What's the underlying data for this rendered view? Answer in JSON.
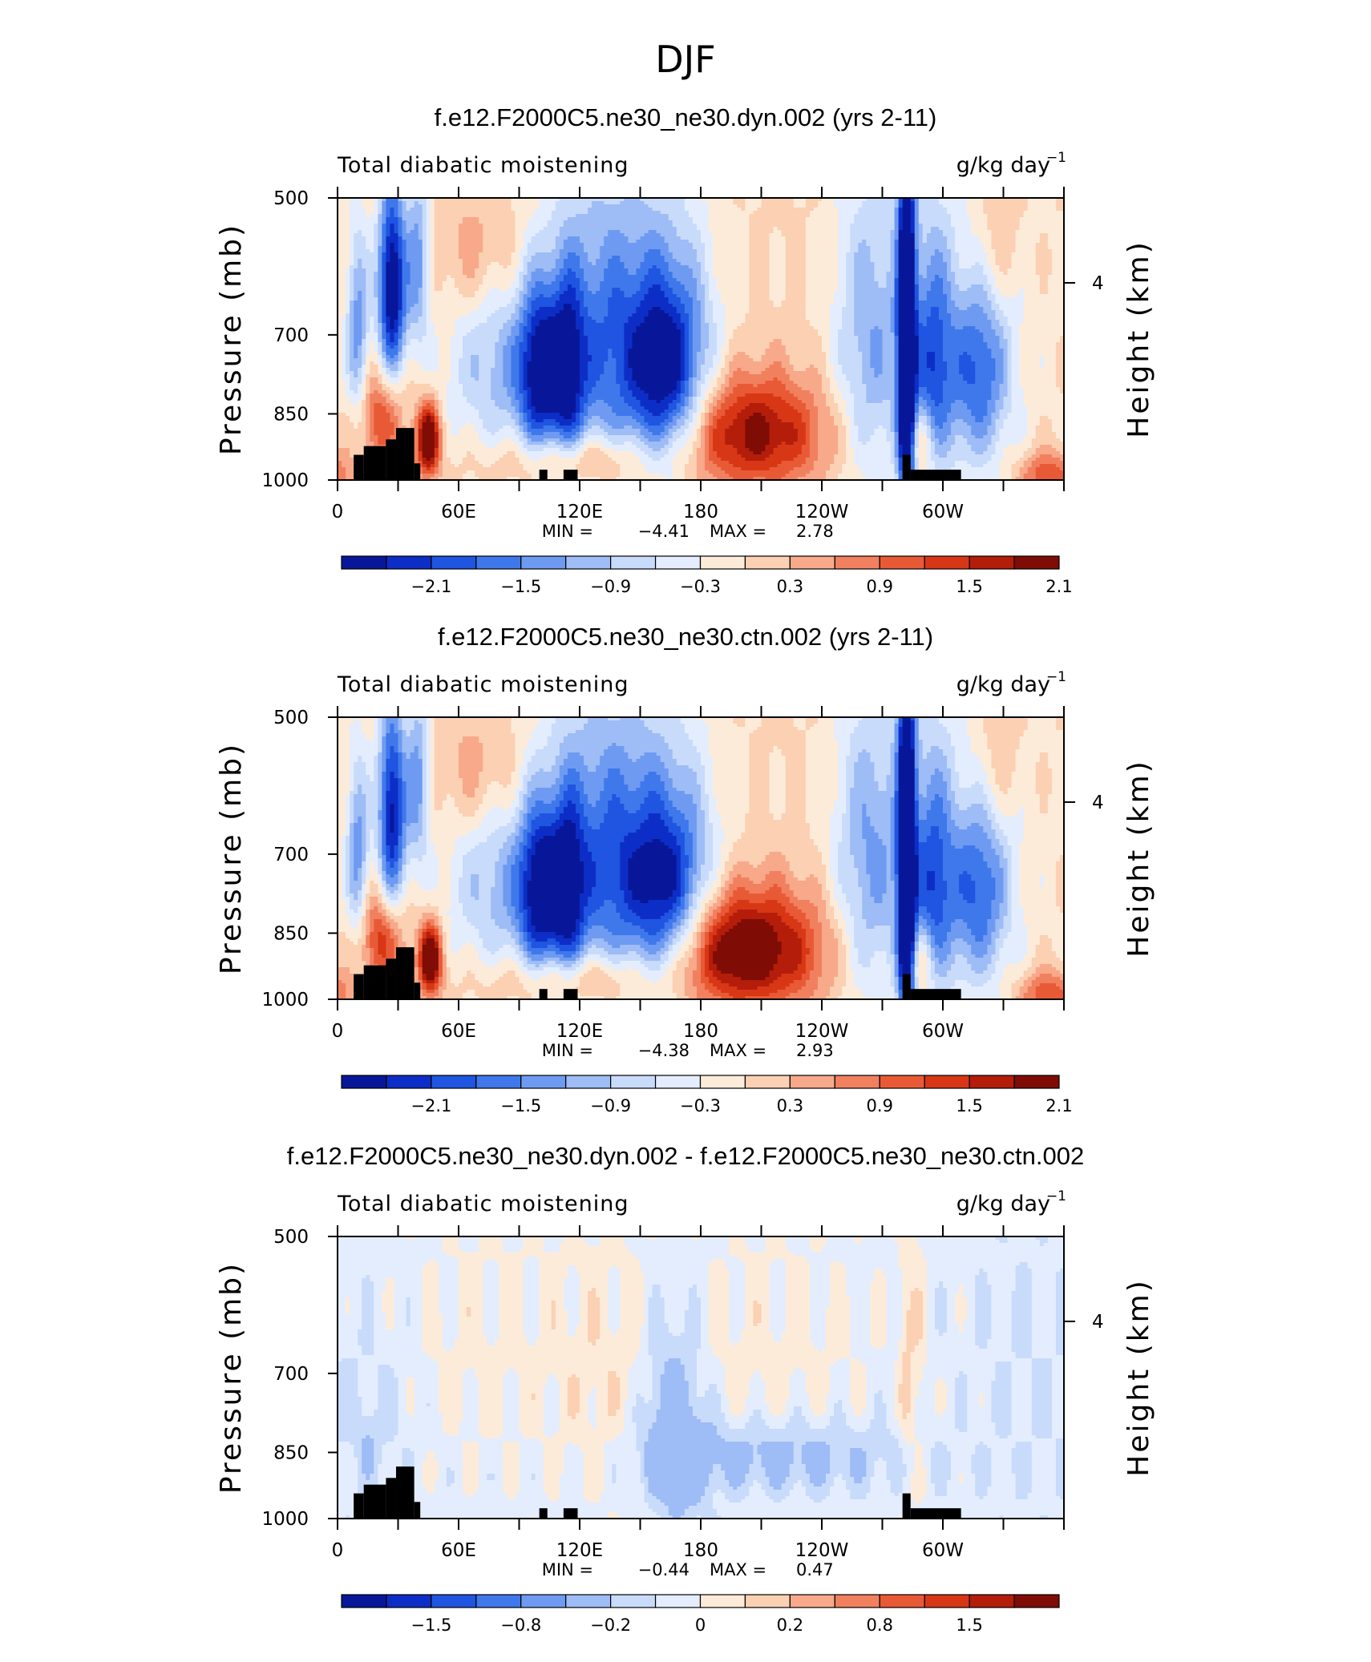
{
  "figure": {
    "title": "DJF",
    "colors": {
      "scale": [
        "#08179a",
        "#0d2ec6",
        "#1f55e0",
        "#3f78eb",
        "#6e9bf1",
        "#9ebcf5",
        "#c9dbfb",
        "#e3edfd",
        "#fdebd9",
        "#fbd0b3",
        "#f7a98a",
        "#f1805f",
        "#e85a35",
        "#d83716",
        "#b41d0a",
        "#7f0c05"
      ],
      "land": "#000000"
    }
  },
  "chart_data": [
    {
      "type": "heatmap",
      "title": "f.e12.F2000C5.ne30_ne30.dyn.002 (yrs 2-11)",
      "left_label": "Total diabatic moistening",
      "units": "g/kg day",
      "units_exp": "−1",
      "xlabel": "",
      "ylabel": "Pressure (mb)",
      "y2label": "Height (km)",
      "xticks": [
        "0",
        "60E",
        "120E",
        "180",
        "120W",
        "60W"
      ],
      "xtick_lon": [
        0,
        60,
        120,
        180,
        240,
        300
      ],
      "xlim": [
        0,
        360
      ],
      "ylim": [
        1000,
        500
      ],
      "yticks": [
        "500",
        "700",
        "850",
        "1000"
      ],
      "ytick_values": [
        500,
        700,
        850,
        1000
      ],
      "y2ticks": [
        "4"
      ],
      "y2tick_pressure": [
        616
      ],
      "stats": {
        "min_label": "MIN =",
        "min": "−4.41",
        "max_label": "MAX =",
        "max": "2.78"
      },
      "colorbar": {
        "levels": [
          -2.4,
          -2.1,
          -1.8,
          -1.5,
          -1.2,
          -0.9,
          -0.6,
          -0.3,
          0,
          0.3,
          0.6,
          0.9,
          1.2,
          1.5,
          1.8,
          2.1
        ],
        "labels": [
          "−2.1",
          "−1.5",
          "−0.9",
          "−0.3",
          "0.3",
          "0.9",
          "1.5",
          "2.1"
        ]
      },
      "features": [
        {
          "lon": 27,
          "p": 620,
          "amp": -3.0,
          "wlon": 5,
          "wp": 110
        },
        {
          "lon": 10,
          "p": 690,
          "amp": -1.4,
          "wlon": 4,
          "wp": 120
        },
        {
          "lon": 45,
          "p": 905,
          "amp": 2.6,
          "wlon": 4,
          "wp": 55
        },
        {
          "lon": 22,
          "p": 855,
          "amp": 1.2,
          "wlon": 8,
          "wp": 70
        },
        {
          "lon": 40,
          "p": 580,
          "amp": -1.4,
          "wlon": 4,
          "wp": 90
        },
        {
          "lon": 85,
          "p": 760,
          "amp": -1.2,
          "wlon": 24,
          "wp": 120
        },
        {
          "lon": 100,
          "p": 770,
          "amp": -1.8,
          "wlon": 7,
          "wp": 120
        },
        {
          "lon": 114,
          "p": 770,
          "amp": -1.6,
          "wlon": 6,
          "wp": 130
        },
        {
          "lon": 130,
          "p": 720,
          "amp": -1.0,
          "wlon": 16,
          "wp": 180
        },
        {
          "lon": 163,
          "p": 770,
          "amp": -2.4,
          "wlon": 14,
          "wp": 130
        },
        {
          "lon": 150,
          "p": 660,
          "amp": -0.8,
          "wlon": 28,
          "wp": 200
        },
        {
          "lon": 205,
          "p": 890,
          "amp": 1.9,
          "wlon": 26,
          "wp": 85
        },
        {
          "lon": 120,
          "p": 950,
          "amp": 0.9,
          "wlon": 25,
          "wp": 40
        },
        {
          "lon": 282,
          "p": 740,
          "amp": -3.8,
          "wlon": 3,
          "wp": 260
        },
        {
          "lon": 263,
          "p": 720,
          "amp": -0.9,
          "wlon": 12,
          "wp": 200
        },
        {
          "lon": 295,
          "p": 760,
          "amp": -1.5,
          "wlon": 7,
          "wp": 140
        },
        {
          "lon": 318,
          "p": 770,
          "amp": -1.4,
          "wlon": 10,
          "wp": 120
        },
        {
          "lon": 300,
          "p": 700,
          "amp": -0.7,
          "wlon": 35,
          "wp": 250
        },
        {
          "lon": 289,
          "p": 910,
          "amp": 0.9,
          "wlon": 5,
          "wp": 60
        },
        {
          "lon": 352,
          "p": 990,
          "amp": 1.2,
          "wlon": 10,
          "wp": 40
        },
        {
          "lon": 70,
          "p": 580,
          "amp": 0.5,
          "wlon": 15,
          "wp": 60
        },
        {
          "lon": 325,
          "p": 560,
          "amp": 0.6,
          "wlon": 10,
          "wp": 70
        }
      ],
      "offset": 0.12
    },
    {
      "type": "heatmap",
      "title": "f.e12.F2000C5.ne30_ne30.ctn.002 (yrs 2-11)",
      "left_label": "Total diabatic moistening",
      "units": "g/kg day",
      "units_exp": "−1",
      "xlabel": "",
      "ylabel": "Pressure (mb)",
      "y2label": "Height (km)",
      "xticks": [
        "0",
        "60E",
        "120E",
        "180",
        "120W",
        "60W"
      ],
      "xtick_lon": [
        0,
        60,
        120,
        180,
        240,
        300
      ],
      "xlim": [
        0,
        360
      ],
      "ylim": [
        1000,
        500
      ],
      "yticks": [
        "500",
        "700",
        "850",
        "1000"
      ],
      "ytick_values": [
        500,
        700,
        850,
        1000
      ],
      "y2ticks": [
        "4"
      ],
      "y2tick_pressure": [
        616
      ],
      "stats": {
        "min_label": "MIN =",
        "min": "−4.38",
        "max_label": "MAX =",
        "max": "2.93"
      },
      "colorbar": {
        "levels": [
          -2.4,
          -2.1,
          -1.8,
          -1.5,
          -1.2,
          -0.9,
          -0.6,
          -0.3,
          0,
          0.3,
          0.6,
          0.9,
          1.2,
          1.5,
          1.8,
          2.1
        ],
        "labels": [
          "−2.1",
          "−1.5",
          "−0.9",
          "−0.3",
          "0.3",
          "0.9",
          "1.5",
          "2.1"
        ]
      },
      "features": [
        {
          "lon": 27,
          "p": 630,
          "amp": -2.6,
          "wlon": 5,
          "wp": 120
        },
        {
          "lon": 10,
          "p": 700,
          "amp": -1.4,
          "wlon": 4,
          "wp": 120
        },
        {
          "lon": 46,
          "p": 905,
          "amp": 2.6,
          "wlon": 4,
          "wp": 55
        },
        {
          "lon": 22,
          "p": 860,
          "amp": 1.4,
          "wlon": 8,
          "wp": 70
        },
        {
          "lon": 40,
          "p": 580,
          "amp": -1.4,
          "wlon": 4,
          "wp": 90
        },
        {
          "lon": 85,
          "p": 760,
          "amp": -1.2,
          "wlon": 24,
          "wp": 120
        },
        {
          "lon": 100,
          "p": 770,
          "amp": -1.8,
          "wlon": 7,
          "wp": 120
        },
        {
          "lon": 114,
          "p": 770,
          "amp": -1.6,
          "wlon": 6,
          "wp": 130
        },
        {
          "lon": 130,
          "p": 720,
          "amp": -1.1,
          "wlon": 16,
          "wp": 180
        },
        {
          "lon": 163,
          "p": 780,
          "amp": -2.3,
          "wlon": 15,
          "wp": 130
        },
        {
          "lon": 150,
          "p": 660,
          "amp": -0.8,
          "wlon": 28,
          "wp": 200
        },
        {
          "lon": 200,
          "p": 885,
          "amp": 2.4,
          "wlon": 28,
          "wp": 90
        },
        {
          "lon": 120,
          "p": 950,
          "amp": 0.9,
          "wlon": 25,
          "wp": 40
        },
        {
          "lon": 282,
          "p": 740,
          "amp": -3.8,
          "wlon": 3,
          "wp": 260
        },
        {
          "lon": 263,
          "p": 720,
          "amp": -1.0,
          "wlon": 12,
          "wp": 200
        },
        {
          "lon": 295,
          "p": 760,
          "amp": -1.5,
          "wlon": 7,
          "wp": 140
        },
        {
          "lon": 318,
          "p": 770,
          "amp": -1.4,
          "wlon": 10,
          "wp": 120
        },
        {
          "lon": 300,
          "p": 700,
          "amp": -0.7,
          "wlon": 35,
          "wp": 250
        },
        {
          "lon": 289,
          "p": 910,
          "amp": 0.9,
          "wlon": 5,
          "wp": 60
        },
        {
          "lon": 352,
          "p": 990,
          "amp": 1.2,
          "wlon": 10,
          "wp": 40
        },
        {
          "lon": 70,
          "p": 580,
          "amp": 0.5,
          "wlon": 15,
          "wp": 60
        },
        {
          "lon": 325,
          "p": 560,
          "amp": 0.6,
          "wlon": 10,
          "wp": 70
        }
      ],
      "offset": 0.12
    },
    {
      "type": "heatmap",
      "title": "f.e12.F2000C5.ne30_ne30.dyn.002 - f.e12.F2000C5.ne30_ne30.ctn.002",
      "left_label": "Total diabatic moistening",
      "units": "g/kg day",
      "units_exp": "−1",
      "xlabel": "",
      "ylabel": "Pressure (mb)",
      "y2label": "Height (km)",
      "xticks": [
        "0",
        "60E",
        "120E",
        "180",
        "120W",
        "60W"
      ],
      "xtick_lon": [
        0,
        60,
        120,
        180,
        240,
        300
      ],
      "xlim": [
        0,
        360
      ],
      "ylim": [
        1000,
        500
      ],
      "yticks": [
        "500",
        "700",
        "850",
        "1000"
      ],
      "ytick_values": [
        500,
        700,
        850,
        1000
      ],
      "y2ticks": [
        "4"
      ],
      "y2tick_pressure": [
        616
      ],
      "stats": {
        "min_label": "MIN =",
        "min": "−0.44",
        "max_label": "MAX =",
        "max": "0.47"
      },
      "colorbar": {
        "levels": [
          -2.0,
          -1.5,
          -1.1,
          -0.8,
          -0.5,
          -0.2,
          -0.1,
          0,
          0.1,
          0.2,
          0.5,
          0.8,
          1.1,
          1.5,
          2.0
        ],
        "labels": [
          "−1.5",
          "−0.8",
          "−0.2",
          "0",
          "0.2",
          "0.8",
          "1.5"
        ],
        "label_positions": [
          1,
          3,
          5,
          7,
          9,
          11,
          13
        ]
      },
      "features": [
        {
          "lon": 170,
          "p": 820,
          "amp": -0.28,
          "wlon": 10,
          "wp": 140
        },
        {
          "lon": 215,
          "p": 860,
          "amp": -0.25,
          "wlon": 45,
          "wp": 55
        },
        {
          "lon": 160,
          "p": 760,
          "amp": -0.12,
          "wlon": 8,
          "wp": 120
        },
        {
          "lon": 210,
          "p": 680,
          "amp": 0.09,
          "wlon": 40,
          "wp": 160
        },
        {
          "lon": 282,
          "p": 650,
          "amp": 0.15,
          "wlon": 2.5,
          "wp": 200
        },
        {
          "lon": 288,
          "p": 720,
          "amp": 0.1,
          "wlon": 3,
          "wp": 200
        },
        {
          "lon": 130,
          "p": 720,
          "amp": 0.1,
          "wlon": 20,
          "wp": 180
        },
        {
          "lon": 70,
          "p": 660,
          "amp": 0.08,
          "wlon": 30,
          "wp": 160
        },
        {
          "lon": 20,
          "p": 780,
          "amp": -0.08,
          "wlon": 15,
          "wp": 120
        },
        {
          "lon": 15,
          "p": 840,
          "amp": -0.12,
          "wlon": 3,
          "wp": 40
        },
        {
          "lon": 340,
          "p": 700,
          "amp": -0.05,
          "wlon": 20,
          "wp": 200
        }
      ],
      "offset": -0.05
    }
  ]
}
